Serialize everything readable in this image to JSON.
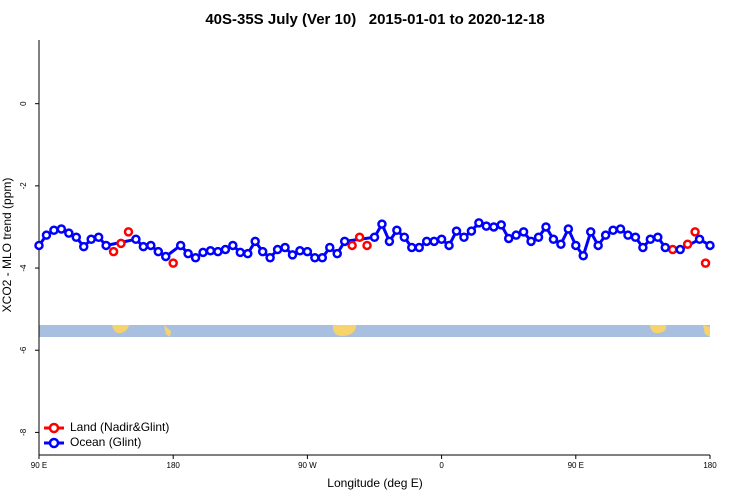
{
  "chart_data": {
    "type": "line",
    "title": "40S-35S July (Ver 10)   2015-01-01 to 2020-12-18",
    "xlabel": "Longitude (deg E)",
    "ylabel": "XCO2 - MLO trend (ppm)",
    "xlim": [
      90,
      540
    ],
    "xticks": [
      {
        "value": 90,
        "label": "90 E"
      },
      {
        "value": 180,
        "label": "180"
      },
      {
        "value": 270,
        "label": "90 W"
      },
      {
        "value": 360,
        "label": "0"
      },
      {
        "value": 450,
        "label": "90 E"
      },
      {
        "value": 540,
        "label": "180"
      }
    ],
    "ylim": [
      -8.55,
      1.55
    ],
    "yticks": [
      0,
      -2,
      -4,
      -6,
      -8
    ],
    "legend": "lower left",
    "series": [
      {
        "name": "Land (Nadir&Glint)",
        "color": "#ff0000",
        "line": false,
        "x": [
          140,
          145,
          150,
          180,
          300,
          305,
          310,
          515,
          525,
          530,
          537
        ],
        "values": [
          -3.6,
          -3.4,
          -3.12,
          -3.88,
          -3.45,
          -3.25,
          -3.45,
          -3.55,
          -3.42,
          -3.12,
          -3.88
        ]
      },
      {
        "name": "Ocean (Glint)",
        "color": "#0000ff",
        "line": true,
        "x": [
          90,
          95,
          100,
          105,
          110,
          115,
          120,
          125,
          130,
          135,
          155,
          160,
          165,
          170,
          175,
          185,
          190,
          195,
          200,
          205,
          210,
          215,
          220,
          225,
          230,
          235,
          240,
          245,
          250,
          255,
          260,
          265,
          270,
          275,
          280,
          285,
          290,
          295,
          315,
          320,
          325,
          330,
          335,
          340,
          345,
          350,
          355,
          360,
          365,
          370,
          375,
          380,
          385,
          390,
          395,
          400,
          405,
          410,
          415,
          420,
          425,
          430,
          435,
          440,
          445,
          450,
          455,
          460,
          465,
          470,
          475,
          480,
          485,
          490,
          495,
          500,
          505,
          510,
          520,
          533,
          540
        ],
        "values": [
          -3.45,
          -3.2,
          -3.08,
          -3.05,
          -3.15,
          -3.25,
          -3.48,
          -3.3,
          -3.25,
          -3.45,
          -3.3,
          -3.48,
          -3.45,
          -3.6,
          -3.72,
          -3.45,
          -3.65,
          -3.75,
          -3.62,
          -3.58,
          -3.6,
          -3.55,
          -3.45,
          -3.62,
          -3.65,
          -3.35,
          -3.6,
          -3.75,
          -3.55,
          -3.5,
          -3.68,
          -3.58,
          -3.6,
          -3.75,
          -3.75,
          -3.5,
          -3.65,
          -3.35,
          -3.25,
          -2.93,
          -3.35,
          -3.08,
          -3.25,
          -3.5,
          -3.5,
          -3.35,
          -3.35,
          -3.3,
          -3.45,
          -3.1,
          -3.25,
          -3.1,
          -2.9,
          -2.98,
          -3.0,
          -2.95,
          -3.28,
          -3.2,
          -3.12,
          -3.35,
          -3.25,
          -3.0,
          -3.3,
          -3.42,
          -3.05,
          -3.45,
          -3.7,
          -3.12,
          -3.45,
          -3.2,
          -3.08,
          -3.05,
          -3.2,
          -3.25,
          -3.5,
          -3.3,
          -3.25,
          -3.5,
          -3.55,
          -3.3,
          -3.45
        ]
      }
    ]
  }
}
